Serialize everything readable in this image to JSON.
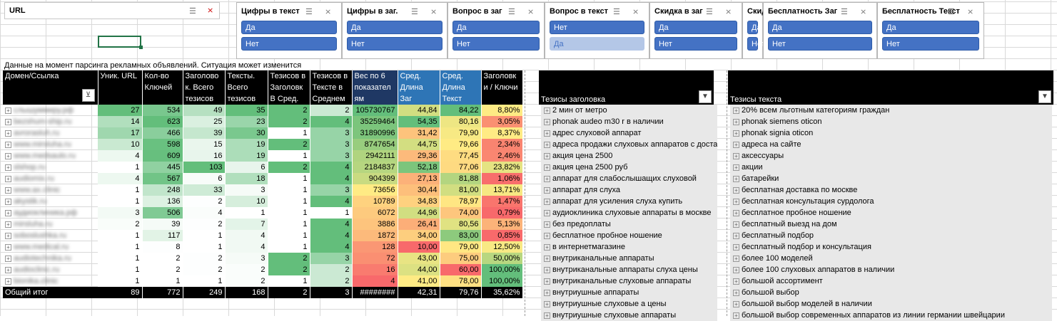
{
  "url_slicer": {
    "title": "URL"
  },
  "slicers": [
    {
      "title": "Цифры в текст",
      "items": [
        {
          "label": "Да",
          "state": "on"
        },
        {
          "label": "Нет",
          "state": "on"
        }
      ]
    },
    {
      "title": "Цифры в заг.",
      "items": [
        {
          "label": "Да",
          "state": "on"
        },
        {
          "label": "Нет",
          "state": "on"
        }
      ]
    },
    {
      "title": "Вопрос в заг",
      "items": [
        {
          "label": "Да",
          "state": "on"
        },
        {
          "label": "Нет",
          "state": "on"
        }
      ]
    },
    {
      "title": "Вопрос в текст",
      "items": [
        {
          "label": "Нет",
          "state": "on"
        },
        {
          "label": "Да",
          "state": "off"
        }
      ]
    },
    {
      "title": "Скидка в заг",
      "items": [
        {
          "label": "Да",
          "state": "on"
        },
        {
          "label": "Нет",
          "state": "on"
        }
      ]
    },
    {
      "title": "Скид",
      "items": [
        {
          "label": "Да",
          "state": "on"
        },
        {
          "label": "Нет",
          "state": "on"
        }
      ]
    },
    {
      "title": "Бесплатность Заг",
      "items": [
        {
          "label": "Да",
          "state": "on"
        },
        {
          "label": "Нет",
          "state": "on"
        }
      ]
    },
    {
      "title": "Бесплатность Текст",
      "items": [
        {
          "label": "Да",
          "state": "on"
        },
        {
          "label": "Нет",
          "state": "on"
        }
      ]
    }
  ],
  "note": "Данные на момент парсинга рекламных объявлений. Ситуация может изменится",
  "pivot": {
    "headers": [
      "Домен/Ссылка",
      "Уник. URL",
      "Кол-во Ключей",
      "Заголово к. Всего тезисов",
      "Тексты. Всего тезисов",
      "Тезисов в Заголовк В Сред.",
      "Тезисов в Тексте в Среднем",
      "Вес по 6 показател ям",
      "Сред. Длина Заг",
      "Сред. Длина Текст",
      "Заголовк и / Ключи"
    ],
    "rows": [
      {
        "domain": "слышуммиру.рф",
        "v": [
          "27",
          "534",
          "49",
          "35",
          "2",
          "2",
          "105730767",
          "44,84",
          "84,22",
          "8,80%"
        ]
      },
      {
        "domain": "bezshum-ship.ru",
        "v": [
          "14",
          "623",
          "25",
          "23",
          "2",
          "4",
          "35259464",
          "54,35",
          "80,16",
          "3,05%"
        ]
      },
      {
        "domain": "avrorasluh.ru",
        "v": [
          "17",
          "466",
          "39",
          "30",
          "1",
          "3",
          "31890996",
          "31,42",
          "79,90",
          "8,37%"
        ]
      },
      {
        "domain": "www.mirsluha.ru",
        "v": [
          "10",
          "598",
          "15",
          "19",
          "2",
          "3",
          "8747654",
          "44,75",
          "79,66",
          "2,34%"
        ]
      },
      {
        "domain": "www.medsaulo.ru",
        "v": [
          "4",
          "609",
          "16",
          "19",
          "1",
          "3",
          "2942111",
          "29,36",
          "77,45",
          "2,46%"
        ]
      },
      {
        "domain": "slshop.ru",
        "v": [
          "1",
          "445",
          "103",
          "6",
          "2",
          "4",
          "2184837",
          "52,18",
          "77,06",
          "23,82%"
        ]
      },
      {
        "domain": "audiomix.ru",
        "v": [
          "4",
          "567",
          "6",
          "18",
          "1",
          "4",
          "904399",
          "27,13",
          "81,88",
          "1,06%"
        ]
      },
      {
        "domain": "www.ax.clinic",
        "v": [
          "1",
          "248",
          "33",
          "3",
          "1",
          "3",
          "73656",
          "30,44",
          "81,00",
          "13,71%"
        ]
      },
      {
        "domain": "akystik.ru",
        "v": [
          "1",
          "136",
          "2",
          "10",
          "1",
          "4",
          "10789",
          "34,83",
          "78,97",
          "1,47%"
        ]
      },
      {
        "domain": "аудиоклиника.рф",
        "v": [
          "3",
          "506",
          "4",
          "1",
          "1",
          "1",
          "6072",
          "44,96",
          "74,00",
          "0,79%"
        ]
      },
      {
        "domain": "mirsluha.ru",
        "v": [
          "2",
          "39",
          "2",
          "7",
          "1",
          "4",
          "3886",
          "26,41",
          "80,56",
          "5,13%"
        ]
      },
      {
        "domain": "soboslushka.ru",
        "v": [
          "1",
          "117",
          "1",
          "4",
          "1",
          "4",
          "1872",
          "34,00",
          "83,00",
          "0,85%"
        ]
      },
      {
        "domain": "www.medical.ru",
        "v": [
          "1",
          "8",
          "1",
          "4",
          "1",
          "4",
          "128",
          "10,00",
          "79,00",
          "12,50%"
        ]
      },
      {
        "domain": "audiotechnika.ru",
        "v": [
          "1",
          "2",
          "2",
          "3",
          "2",
          "3",
          "72",
          "43,00",
          "75,00",
          "50,00%"
        ]
      },
      {
        "domain": "audioclinic.ru",
        "v": [
          "1",
          "2",
          "2",
          "2",
          "2",
          "2",
          "16",
          "44,00",
          "60,00",
          "100,00%"
        ]
      },
      {
        "domain": "bionika.clinic",
        "v": [
          "1",
          "1",
          "1",
          "2",
          "1",
          "2",
          "4",
          "41,00",
          "78,00",
          "100,00%"
        ]
      }
    ],
    "total": {
      "label": "Общий итог",
      "v": [
        "89",
        "772",
        "249",
        "168",
        "2",
        "3",
        "########",
        "42,31",
        "79,76",
        "35,62%"
      ]
    }
  },
  "theses_title": {
    "header": "Тезисы заголовка",
    "items": [
      "2 мин от метро",
      "phonak audeo m30 r в наличии",
      "адрес слуховой аппарат",
      "адреса продажи слуховых аппаратов с доставк",
      "акция цена 2500",
      "акция цена 2500 руб",
      "аппарат для слабослышащих слуховой",
      "аппарат для слуха",
      "аппарат для усиления слуха купить",
      "аудиоклиника слуховые аппараты в москве",
      "без предоплаты",
      "бесплатное пробное ношение",
      "в интернетмагазине",
      "внутриканальные аппараты",
      "внутриканальные аппараты слуха цены",
      "внутриканальные слуховые аппараты",
      "внутриушные аппараты",
      "внутриушные слуховые а цены",
      "внутриушные слуховые аппараты"
    ]
  },
  "theses_text": {
    "header": "Тезисы текста",
    "items": [
      "20% всем льготным категориям граждан",
      "phonak siemens oticon",
      "phonak signia oticon",
      "адреса на сайте",
      "аксессуары",
      "акции",
      "батарейки",
      "бесплатная доставка по москве",
      "бесплатная консультация сурдолога",
      "бесплатное пробное ношение",
      "бесплатный выезд на дом",
      "бесплатный подбор",
      "бесплатный подбор и консультация",
      "более 100 моделей",
      "более 100 слуховых аппаратов в наличии",
      "большой ассортимент",
      "большой выбор",
      "большой выбор моделей в наличии",
      "большой выбор современных аппаратов из линии германии швейцарии"
    ]
  },
  "colors": {
    "accent": "#4472c4",
    "excel_green": "#217346"
  }
}
